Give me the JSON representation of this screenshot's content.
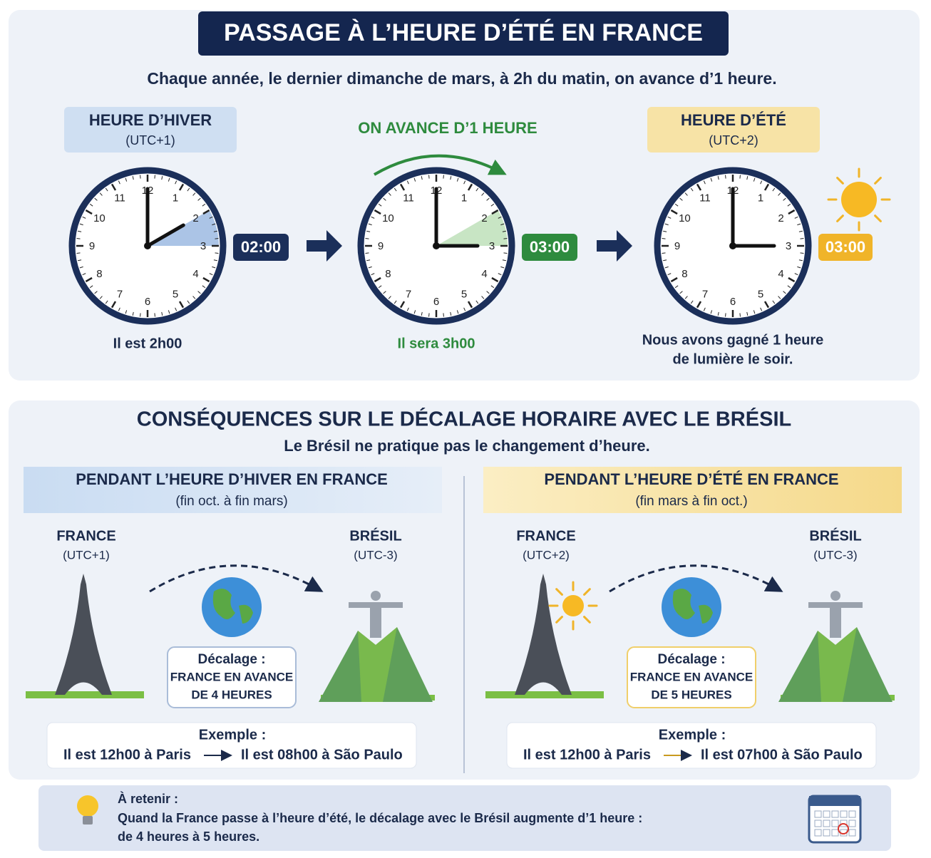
{
  "header": {
    "title": "PASSAGE À L’HEURE D’ÉTÉ EN FRANCE",
    "subtitle": "Chaque année, le dernier dimanche de mars, à 2h du matin, on avance d’1 heure."
  },
  "clocks": [
    {
      "label": "HEURE D’HIVER",
      "utc": "(UTC+1)",
      "time": "02:00",
      "caption": [
        "Il est 2h00"
      ]
    },
    {
      "label": "ON AVANCE D’1 HEURE",
      "time": "03:00",
      "caption": [
        "Il sera 3h00"
      ]
    },
    {
      "label": "HEURE D’ÉTÉ",
      "utc": "(UTC+2)",
      "time": "03:00",
      "caption": [
        "Nous avons gagné 1 heure",
        "de lumière le soir."
      ]
    }
  ],
  "clock_numerals": [
    "12",
    "1",
    "2",
    "3",
    "4",
    "5",
    "6",
    "7",
    "8",
    "9",
    "10",
    "11"
  ],
  "section2": {
    "title": "CONSÉQUENCES SUR LE DÉCALAGE HORAIRE AVEC LE BRÉSIL",
    "subtitle": "Le Brésil ne pratique pas le changement d’heure.",
    "panels": [
      {
        "title": "PENDANT L’HEURE D’HIVER EN FRANCE",
        "period": "(fin oct. à fin mars)",
        "left": {
          "name": "FRANCE",
          "utc": "(UTC+1)"
        },
        "right": {
          "name": "BRÉSIL",
          "utc": "(UTC-3)"
        },
        "offset": [
          "Décalage :",
          "FRANCE EN AVANCE",
          "DE 4 HEURES"
        ],
        "example_title": "Exemple :",
        "example_from": "Il est 12h00 à Paris",
        "example_to": "Il est 08h00 à São Paulo"
      },
      {
        "title": "PENDANT L’HEURE D’ÉTÉ EN FRANCE",
        "period": "(fin mars à fin oct.)",
        "left": {
          "name": "FRANCE",
          "utc": "(UTC+2)"
        },
        "right": {
          "name": "BRÉSIL",
          "utc": "(UTC-3)"
        },
        "offset": [
          "Décalage :",
          "FRANCE EN AVANCE",
          "DE 5 HEURES"
        ],
        "example_title": "Exemple :",
        "example_from": "Il est 12h00 à Paris",
        "example_to": "Il est 07h00 à São Paulo"
      }
    ]
  },
  "note": {
    "title": "À retenir :",
    "lines": [
      "Quand la France passe à l’heure d’été, le décalage avec le Brésil augmente d’1 heure :",
      "de 4 heures à 5 heures."
    ]
  }
}
